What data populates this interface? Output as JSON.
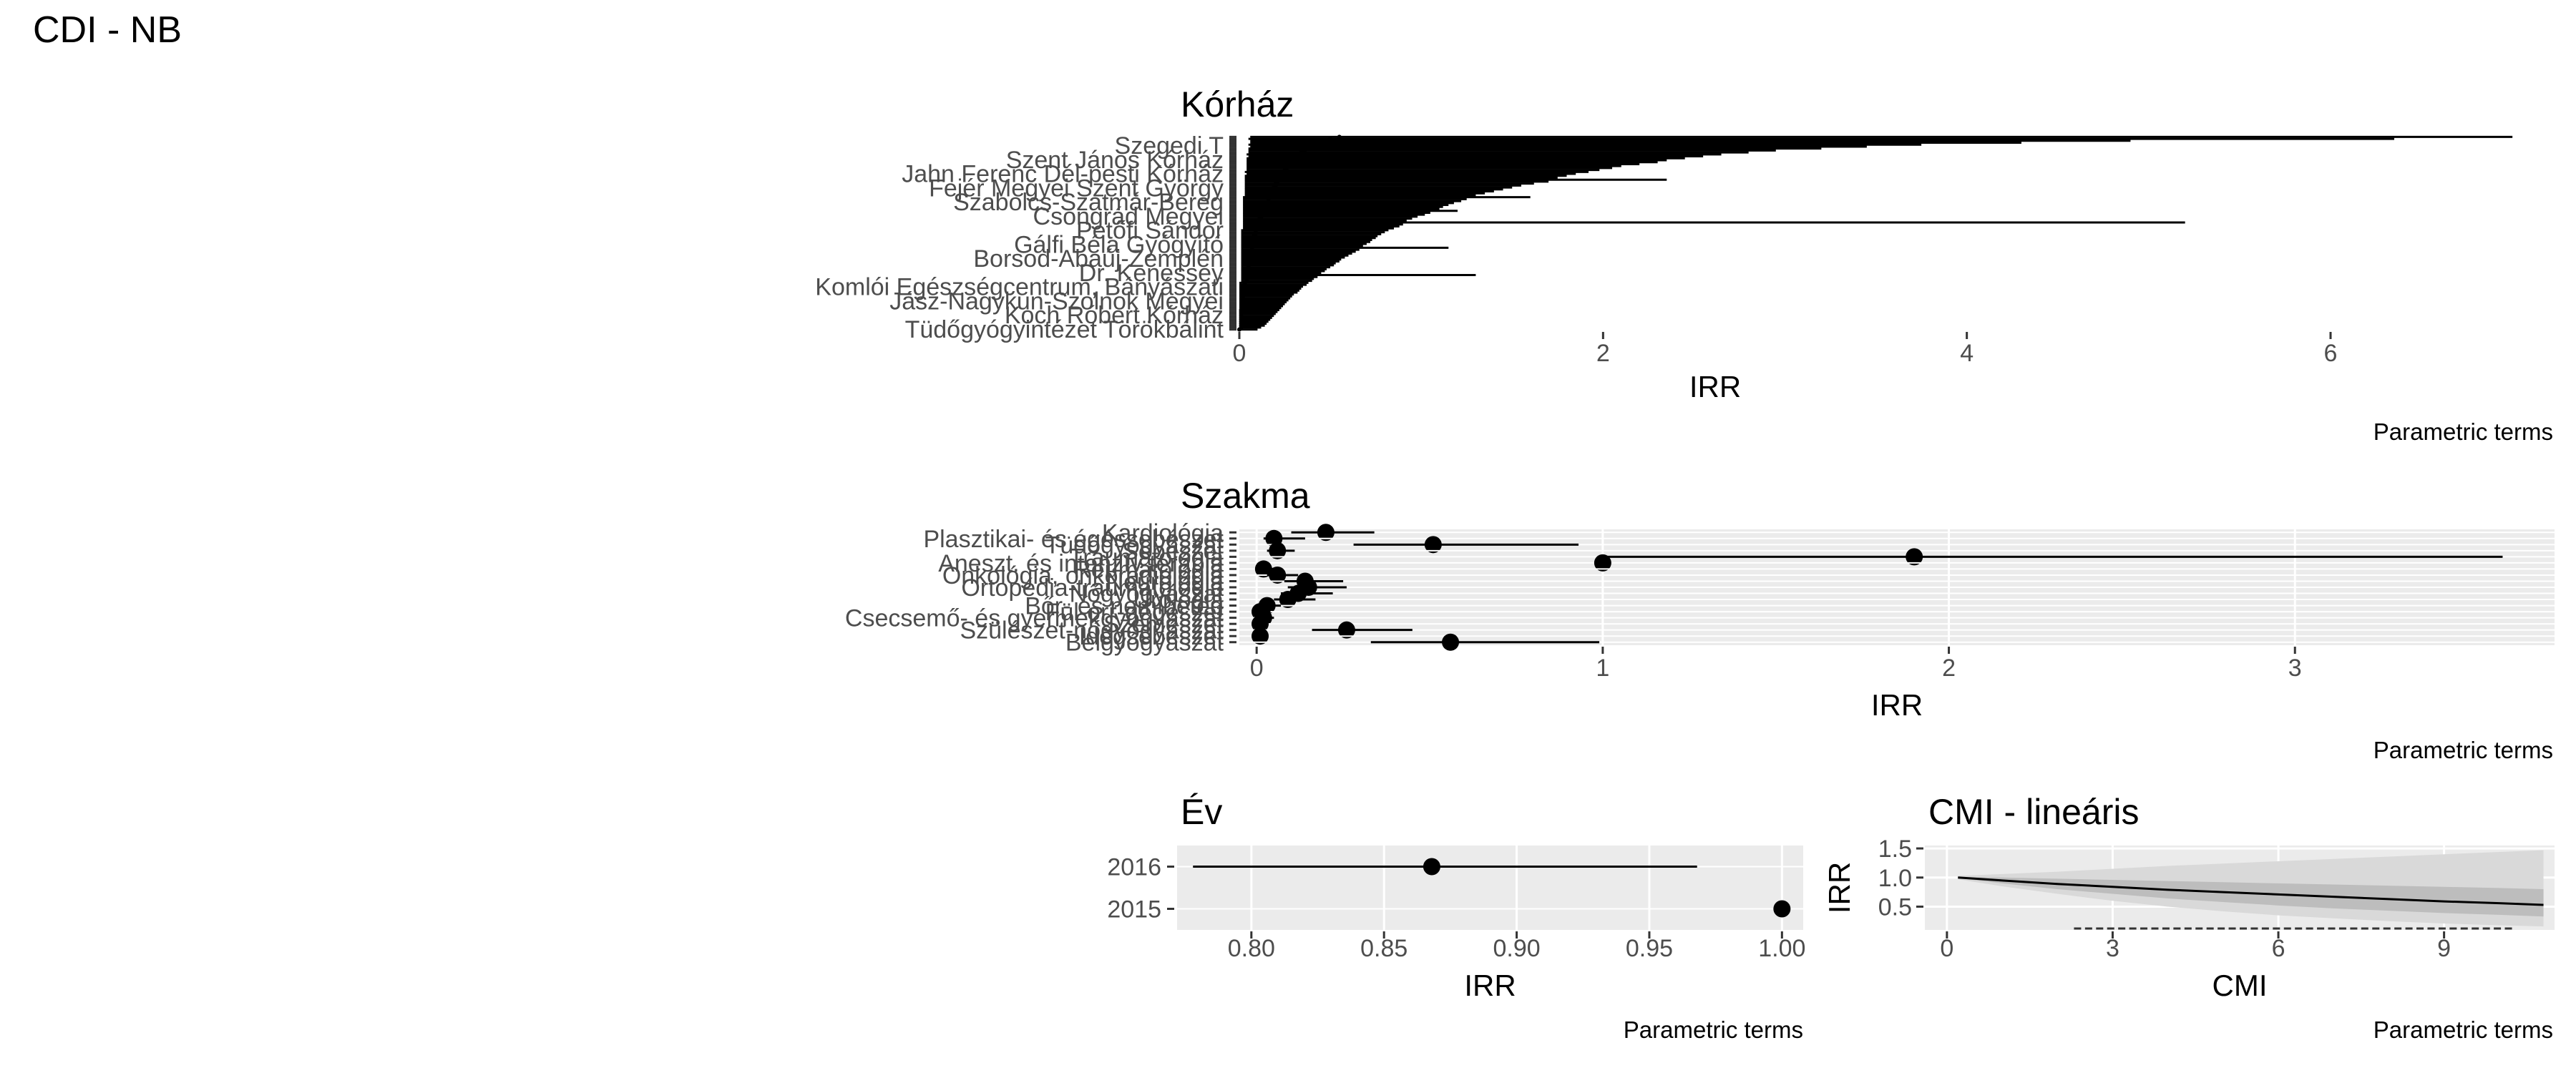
{
  "page": {
    "title": "CDI  -  NB"
  },
  "chart_data": [
    {
      "type": "scatter",
      "title": "Kórház",
      "xlabel": "IRR",
      "caption": "Parametric terms",
      "xlim": [
        0,
        7.2
      ],
      "xticks": [
        0,
        2,
        4,
        6
      ],
      "xticklabels": [
        "0",
        "2",
        "4",
        "6"
      ],
      "grid": false,
      "visible_category_labels": [
        "Szegedi T",
        "Szent János Kórház",
        "Jahn Ferenc Dél-pesti Kórház",
        "Fejér Megyei Szent György",
        "Szabolcs-Szatmár-Bereg",
        "Csongrád Megyei",
        "Petőfi Sándor",
        "Gálfi Béla Gyógyító",
        "Borsod-Abaúj-Zemplén",
        "Dr. Kenessey",
        "Komlói Egészségcentrum, Bányászati",
        "Jász-Nagykun-Szolnok Megyei",
        "Koch Róbert Kórház",
        "Tüdőgyógyintézet Törökbálint"
      ],
      "points": [
        {
          "est": 0.55,
          "lo": 0.06,
          "hi": 7.0
        },
        {
          "est": 0.5,
          "lo": 0.05,
          "hi": 6.35
        },
        {
          "est": 0.48,
          "lo": 0.06,
          "hi": 4.9
        },
        {
          "est": 0.45,
          "lo": 0.06,
          "hi": 4.3
        },
        {
          "est": 0.42,
          "lo": 0.05,
          "hi": 3.75
        },
        {
          "est": 0.4,
          "lo": 0.06,
          "hi": 3.45
        },
        {
          "est": 0.38,
          "lo": 0.05,
          "hi": 3.2
        },
        {
          "est": 0.36,
          "lo": 0.05,
          "hi": 2.95
        },
        {
          "est": 0.34,
          "lo": 0.05,
          "hi": 2.8
        },
        {
          "est": 0.33,
          "lo": 0.04,
          "hi": 2.65
        },
        {
          "est": 0.32,
          "lo": 0.05,
          "hi": 2.55
        },
        {
          "est": 0.3,
          "lo": 0.04,
          "hi": 2.45
        },
        {
          "est": 0.29,
          "lo": 0.04,
          "hi": 2.35
        },
        {
          "est": 0.28,
          "lo": 0.04,
          "hi": 2.3
        },
        {
          "est": 0.27,
          "lo": 0.04,
          "hi": 2.2
        },
        {
          "est": 0.26,
          "lo": 0.04,
          "hi": 2.1
        },
        {
          "est": 0.26,
          "lo": 0.04,
          "hi": 2.05
        },
        {
          "est": 0.25,
          "lo": 0.04,
          "hi": 1.98
        },
        {
          "est": 0.24,
          "lo": 0.03,
          "hi": 1.92
        },
        {
          "est": 0.24,
          "lo": 0.04,
          "hi": 1.85
        },
        {
          "est": 0.23,
          "lo": 0.03,
          "hi": 1.8
        },
        {
          "est": 0.22,
          "lo": 0.03,
          "hi": 1.75
        },
        {
          "est": 0.22,
          "lo": 0.03,
          "hi": 2.35
        },
        {
          "est": 0.21,
          "lo": 0.03,
          "hi": 1.7
        },
        {
          "est": 0.2,
          "lo": 0.03,
          "hi": 1.62
        },
        {
          "est": 0.2,
          "lo": 0.03,
          "hi": 1.55
        },
        {
          "est": 0.19,
          "lo": 0.03,
          "hi": 1.5
        },
        {
          "est": 0.19,
          "lo": 0.03,
          "hi": 1.45
        },
        {
          "est": 0.18,
          "lo": 0.03,
          "hi": 1.4
        },
        {
          "est": 0.18,
          "lo": 0.03,
          "hi": 1.35
        },
        {
          "est": 0.17,
          "lo": 0.03,
          "hi": 1.3
        },
        {
          "est": 0.17,
          "lo": 0.02,
          "hi": 1.6
        },
        {
          "est": 0.16,
          "lo": 0.02,
          "hi": 1.25
        },
        {
          "est": 0.16,
          "lo": 0.02,
          "hi": 1.22
        },
        {
          "est": 0.15,
          "lo": 0.02,
          "hi": 1.18
        },
        {
          "est": 0.15,
          "lo": 0.02,
          "hi": 1.15
        },
        {
          "est": 0.14,
          "lo": 0.02,
          "hi": 1.12
        },
        {
          "est": 0.14,
          "lo": 0.02,
          "hi": 1.1
        },
        {
          "est": 0.13,
          "lo": 0.02,
          "hi": 1.2
        },
        {
          "est": 0.13,
          "lo": 0.02,
          "hi": 1.05
        },
        {
          "est": 0.12,
          "lo": 0.02,
          "hi": 1.02
        },
        {
          "est": 0.12,
          "lo": 0.02,
          "hi": 0.98
        },
        {
          "est": 0.11,
          "lo": 0.02,
          "hi": 0.95
        },
        {
          "est": 0.11,
          "lo": 0.02,
          "hi": 0.92
        },
        {
          "est": 0.14,
          "lo": 0.02,
          "hi": 5.2
        },
        {
          "est": 0.1,
          "lo": 0.02,
          "hi": 0.9
        },
        {
          "est": 0.1,
          "lo": 0.02,
          "hi": 0.88
        },
        {
          "est": 0.1,
          "lo": 0.02,
          "hi": 0.85
        },
        {
          "est": 0.09,
          "lo": 0.01,
          "hi": 0.82
        },
        {
          "est": 0.09,
          "lo": 0.01,
          "hi": 0.8
        },
        {
          "est": 0.09,
          "lo": 0.01,
          "hi": 0.78
        },
        {
          "est": 0.08,
          "lo": 0.01,
          "hi": 0.76
        },
        {
          "est": 0.08,
          "lo": 0.01,
          "hi": 0.75
        },
        {
          "est": 0.08,
          "lo": 0.01,
          "hi": 0.73
        },
        {
          "est": 0.08,
          "lo": 0.01,
          "hi": 0.72
        },
        {
          "est": 0.07,
          "lo": 0.01,
          "hi": 0.7
        },
        {
          "est": 0.07,
          "lo": 0.01,
          "hi": 0.68
        },
        {
          "est": 0.07,
          "lo": 0.01,
          "hi": 1.15
        },
        {
          "est": 0.07,
          "lo": 0.01,
          "hi": 0.66
        },
        {
          "est": 0.06,
          "lo": 0.01,
          "hi": 0.64
        },
        {
          "est": 0.06,
          "lo": 0.01,
          "hi": 0.62
        },
        {
          "est": 0.06,
          "lo": 0.01,
          "hi": 0.6
        },
        {
          "est": 0.06,
          "lo": 0.01,
          "hi": 0.58
        },
        {
          "est": 0.06,
          "lo": 0.01,
          "hi": 0.56
        },
        {
          "est": 0.05,
          "lo": 0.01,
          "hi": 0.55
        },
        {
          "est": 0.05,
          "lo": 0.01,
          "hi": 0.53
        },
        {
          "est": 0.05,
          "lo": 0.01,
          "hi": 0.52
        },
        {
          "est": 0.05,
          "lo": 0.01,
          "hi": 0.5
        },
        {
          "est": 0.05,
          "lo": 0.01,
          "hi": 0.48
        },
        {
          "est": 0.04,
          "lo": 0.01,
          "hi": 0.47
        },
        {
          "est": 0.04,
          "lo": 0.01,
          "hi": 0.45
        },
        {
          "est": 0.04,
          "lo": 0.01,
          "hi": 1.3
        },
        {
          "est": 0.04,
          "lo": 0.01,
          "hi": 0.43
        },
        {
          "est": 0.04,
          "lo": 0.01,
          "hi": 0.41
        },
        {
          "est": 0.04,
          "lo": 0.01,
          "hi": 0.4
        },
        {
          "est": 0.03,
          "lo": 0.0,
          "hi": 0.38
        },
        {
          "est": 0.03,
          "lo": 0.0,
          "hi": 0.37
        },
        {
          "est": 0.03,
          "lo": 0.0,
          "hi": 0.35
        },
        {
          "est": 0.03,
          "lo": 0.0,
          "hi": 0.34
        },
        {
          "est": 0.03,
          "lo": 0.0,
          "hi": 0.33
        },
        {
          "est": 0.03,
          "lo": 0.0,
          "hi": 0.32
        },
        {
          "est": 0.02,
          "lo": 0.0,
          "hi": 0.3
        },
        {
          "est": 0.02,
          "lo": 0.0,
          "hi": 0.29
        },
        {
          "est": 0.02,
          "lo": 0.0,
          "hi": 0.28
        },
        {
          "est": 0.02,
          "lo": 0.0,
          "hi": 0.27
        },
        {
          "est": 0.02,
          "lo": 0.0,
          "hi": 0.26
        },
        {
          "est": 0.02,
          "lo": 0.0,
          "hi": 0.25
        },
        {
          "est": 0.02,
          "lo": 0.0,
          "hi": 0.24
        },
        {
          "est": 0.02,
          "lo": 0.0,
          "hi": 0.23
        },
        {
          "est": 0.01,
          "lo": 0.0,
          "hi": 0.22
        },
        {
          "est": 0.01,
          "lo": 0.0,
          "hi": 0.21
        },
        {
          "est": 0.01,
          "lo": 0.0,
          "hi": 0.2
        },
        {
          "est": 0.01,
          "lo": 0.0,
          "hi": 0.19
        },
        {
          "est": 0.01,
          "lo": 0.0,
          "hi": 0.18
        },
        {
          "est": 0.01,
          "lo": 0.0,
          "hi": 0.17
        },
        {
          "est": 0.01,
          "lo": 0.0,
          "hi": 0.16
        },
        {
          "est": 0.01,
          "lo": 0.0,
          "hi": 0.15
        },
        {
          "est": 0.01,
          "lo": 0.0,
          "hi": 0.14
        },
        {
          "est": 0.01,
          "lo": 0.0,
          "hi": 0.12
        },
        {
          "est": 0.0,
          "lo": 0.0,
          "hi": 0.1
        }
      ]
    },
    {
      "type": "scatter",
      "title": "Szakma",
      "xlabel": "IRR",
      "caption": "Parametric terms",
      "xlim": [
        -0.05,
        3.75
      ],
      "xticks": [
        0,
        1,
        2,
        3
      ],
      "xticklabels": [
        "0",
        "1",
        "2",
        "3"
      ],
      "grid": true,
      "categories": [
        "Kardiológia",
        "Plasztikai- és égéssebészet",
        "Tüdőgyógyászat",
        "Sebészet",
        "Traumatológia",
        "Aneszt. és intenzív terápia",
        "Reumatológia",
        "Onkológia, onkoradiológia",
        "Neurológia",
        "Ortopédia-traumatológia",
        "Nőgyógyászat",
        "Urológia",
        "Bőr- és nemibeteg",
        "Fül-orr-gégészet",
        "Csecsemő- és gyermekgyógyászat",
        "Szemészet",
        "Szülészet-nőgyógyászat",
        "Idegsebészet",
        "Belgyógyászat"
      ],
      "points": [
        {
          "est": 0.2,
          "lo": 0.1,
          "hi": 0.34
        },
        {
          "est": 0.05,
          "lo": 0.02,
          "hi": 0.14
        },
        {
          "est": 0.51,
          "lo": 0.28,
          "hi": 0.93
        },
        {
          "est": 0.06,
          "lo": 0.03,
          "hi": 0.11
        },
        {
          "est": 1.9,
          "lo": 1.0,
          "hi": 3.6
        },
        {
          "est": 1.0,
          "lo": 1.0,
          "hi": 1.0
        },
        {
          "est": 0.02,
          "lo": 0.01,
          "hi": 0.06
        },
        {
          "est": 0.06,
          "lo": 0.03,
          "hi": 0.12
        },
        {
          "est": 0.14,
          "lo": 0.08,
          "hi": 0.25
        },
        {
          "est": 0.15,
          "lo": 0.09,
          "hi": 0.26
        },
        {
          "est": 0.12,
          "lo": 0.07,
          "hi": 0.22
        },
        {
          "est": 0.09,
          "lo": 0.05,
          "hi": 0.17
        },
        {
          "est": 0.03,
          "lo": 0.01,
          "hi": 0.07
        },
        {
          "est": 0.01,
          "lo": 0.0,
          "hi": 0.04
        },
        {
          "est": 0.02,
          "lo": 0.01,
          "hi": 0.05
        },
        {
          "est": 0.01,
          "lo": 0.0,
          "hi": 0.03
        },
        {
          "est": 0.26,
          "lo": 0.16,
          "hi": 0.45
        },
        {
          "est": 0.01,
          "lo": 0.0,
          "hi": 0.02
        },
        {
          "est": 0.56,
          "lo": 0.33,
          "hi": 0.99
        }
      ]
    },
    {
      "type": "scatter",
      "title": "Év",
      "xlabel": "IRR",
      "caption": "Parametric terms",
      "xlim": [
        0.772,
        1.008
      ],
      "xticks": [
        0.8,
        0.85,
        0.9,
        0.95,
        1.0
      ],
      "xticklabels": [
        "0.80",
        "0.85",
        "0.90",
        "0.95",
        "1.00"
      ],
      "grid": true,
      "categories": [
        "2016",
        "2015"
      ],
      "points": [
        {
          "est": 0.868,
          "lo": 0.778,
          "hi": 0.968
        },
        {
          "est": 1.0,
          "lo": 1.0,
          "hi": 1.0
        }
      ]
    },
    {
      "type": "line",
      "title": "CMI - lineáris",
      "xlabel": "CMI",
      "ylabel": "IRR",
      "caption": "Parametric terms",
      "xlim": [
        -0.4,
        11.0
      ],
      "ylim": [
        0.1,
        1.55
      ],
      "xticks": [
        0,
        3,
        6,
        9
      ],
      "xticklabels": [
        "0",
        "3",
        "6",
        "9"
      ],
      "yticks": [
        0.5,
        1.0,
        1.5
      ],
      "yticklabels": [
        "0.5",
        "1.0",
        "1.5"
      ],
      "grid": true,
      "x": [
        0.2,
        1,
        2,
        3,
        4,
        5,
        6,
        7,
        8,
        9,
        10,
        10.8
      ],
      "y": [
        1.0,
        0.95,
        0.89,
        0.84,
        0.79,
        0.75,
        0.71,
        0.67,
        0.63,
        0.59,
        0.56,
        0.53
      ],
      "ci_lo": [
        0.97,
        0.85,
        0.72,
        0.6,
        0.5,
        0.42,
        0.35,
        0.3,
        0.25,
        0.21,
        0.18,
        0.16
      ],
      "ci_hi": [
        1.03,
        1.06,
        1.1,
        1.15,
        1.2,
        1.24,
        1.28,
        1.32,
        1.36,
        1.4,
        1.44,
        1.47
      ],
      "ci_inner_lo": [
        0.99,
        0.9,
        0.8,
        0.72,
        0.64,
        0.58,
        0.52,
        0.47,
        0.43,
        0.39,
        0.36,
        0.33
      ],
      "ci_inner_hi": [
        1.01,
        1.0,
        0.98,
        0.96,
        0.94,
        0.92,
        0.9,
        0.88,
        0.86,
        0.84,
        0.82,
        0.8
      ]
    }
  ]
}
